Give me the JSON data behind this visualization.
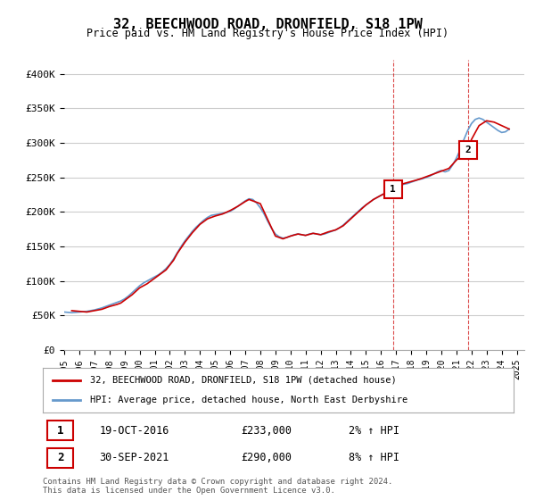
{
  "title": "32, BEECHWOOD ROAD, DRONFIELD, S18 1PW",
  "subtitle": "Price paid vs. HM Land Registry's House Price Index (HPI)",
  "ylabel_ticks": [
    "£0",
    "£50K",
    "£100K",
    "£150K",
    "£200K",
    "£250K",
    "£300K",
    "£350K",
    "£400K"
  ],
  "ytick_values": [
    0,
    50000,
    100000,
    150000,
    200000,
    250000,
    300000,
    350000,
    400000
  ],
  "ylim": [
    0,
    420000
  ],
  "xlim_start": 1995.0,
  "xlim_end": 2025.5,
  "legend_line1": "32, BEECHWOOD ROAD, DRONFIELD, S18 1PW (detached house)",
  "legend_line2": "HPI: Average price, detached house, North East Derbyshire",
  "sale1_date": "19-OCT-2016",
  "sale1_price": "£233,000",
  "sale1_hpi": "2% ↑ HPI",
  "sale1_x": 2016.8,
  "sale1_y": 233000,
  "sale2_date": "30-SEP-2021",
  "sale2_price": "£290,000",
  "sale2_hpi": "8% ↑ HPI",
  "sale2_x": 2021.75,
  "sale2_y": 290000,
  "line_color_red": "#cc0000",
  "line_color_blue": "#6699cc",
  "background_color": "#ffffff",
  "grid_color": "#cccccc",
  "footer_text": "Contains HM Land Registry data © Crown copyright and database right 2024.\nThis data is licensed under the Open Government Licence v3.0.",
  "hpi_data_x": [
    1995.0,
    1995.25,
    1995.5,
    1995.75,
    1996.0,
    1996.25,
    1996.5,
    1996.75,
    1997.0,
    1997.25,
    1997.5,
    1997.75,
    1998.0,
    1998.25,
    1998.5,
    1998.75,
    1999.0,
    1999.25,
    1999.5,
    1999.75,
    2000.0,
    2000.25,
    2000.5,
    2000.75,
    2001.0,
    2001.25,
    2001.5,
    2001.75,
    2002.0,
    2002.25,
    2002.5,
    2002.75,
    2003.0,
    2003.25,
    2003.5,
    2003.75,
    2004.0,
    2004.25,
    2004.5,
    2004.75,
    2005.0,
    2005.25,
    2005.5,
    2005.75,
    2006.0,
    2006.25,
    2006.5,
    2006.75,
    2007.0,
    2007.25,
    2007.5,
    2007.75,
    2008.0,
    2008.25,
    2008.5,
    2008.75,
    2009.0,
    2009.25,
    2009.5,
    2009.75,
    2010.0,
    2010.25,
    2010.5,
    2010.75,
    2011.0,
    2011.25,
    2011.5,
    2011.75,
    2012.0,
    2012.25,
    2012.5,
    2012.75,
    2013.0,
    2013.25,
    2013.5,
    2013.75,
    2014.0,
    2014.25,
    2014.5,
    2014.75,
    2015.0,
    2015.25,
    2015.5,
    2015.75,
    2016.0,
    2016.25,
    2016.5,
    2016.75,
    2017.0,
    2017.25,
    2017.5,
    2017.75,
    2018.0,
    2018.25,
    2018.5,
    2018.75,
    2019.0,
    2019.25,
    2019.5,
    2019.75,
    2020.0,
    2020.25,
    2020.5,
    2020.75,
    2021.0,
    2021.25,
    2021.5,
    2021.75,
    2022.0,
    2022.25,
    2022.5,
    2022.75,
    2023.0,
    2023.25,
    2023.5,
    2023.75,
    2024.0,
    2024.25,
    2024.5
  ],
  "hpi_data_y": [
    55000,
    54500,
    54000,
    54500,
    55000,
    55500,
    56000,
    57000,
    58000,
    59500,
    61000,
    63000,
    65000,
    67000,
    69000,
    71000,
    74000,
    78000,
    83000,
    88000,
    93000,
    97000,
    100000,
    103000,
    106000,
    109000,
    113000,
    118000,
    124000,
    132000,
    141000,
    150000,
    158000,
    165000,
    172000,
    178000,
    183000,
    188000,
    192000,
    195000,
    196000,
    197000,
    198000,
    199000,
    201000,
    204000,
    208000,
    212000,
    216000,
    219000,
    218000,
    213000,
    206000,
    197000,
    186000,
    176000,
    168000,
    164000,
    162000,
    163000,
    165000,
    167000,
    168000,
    167000,
    166000,
    168000,
    169000,
    168000,
    167000,
    168000,
    170000,
    172000,
    174000,
    177000,
    181000,
    186000,
    191000,
    196000,
    201000,
    206000,
    210000,
    214000,
    218000,
    221000,
    224000,
    227000,
    230000,
    232000,
    235000,
    238000,
    240000,
    241000,
    243000,
    245000,
    247000,
    248000,
    250000,
    252000,
    255000,
    258000,
    260000,
    258000,
    260000,
    268000,
    278000,
    290000,
    305000,
    318000,
    328000,
    334000,
    336000,
    334000,
    330000,
    326000,
    322000,
    318000,
    315000,
    316000,
    320000
  ],
  "price_data_x": [
    1995.5,
    1996.0,
    1996.5,
    1997.0,
    1997.5,
    1998.0,
    1998.5,
    1998.75,
    1999.0,
    1999.5,
    2000.0,
    2000.5,
    2001.0,
    2001.25,
    2001.75,
    2002.25,
    2002.5,
    2003.0,
    2003.5,
    2004.0,
    2004.5,
    2005.0,
    2005.5,
    2006.0,
    2006.5,
    2007.0,
    2007.25,
    2008.0,
    2009.0,
    2009.5,
    2010.0,
    2010.5,
    2011.0,
    2011.5,
    2012.0,
    2012.5,
    2013.0,
    2013.5,
    2014.0,
    2014.5,
    2015.0,
    2015.5,
    2016.0,
    2016.8,
    2017.0,
    2017.5,
    2018.0,
    2018.5,
    2019.0,
    2019.5,
    2020.0,
    2020.5,
    2021.0,
    2021.75,
    2022.0,
    2022.5,
    2023.0,
    2023.5,
    2024.0,
    2024.5
  ],
  "price_data_y": [
    57000,
    56000,
    55000,
    57000,
    59000,
    63000,
    66000,
    68000,
    72000,
    80000,
    90000,
    96000,
    104000,
    108000,
    116000,
    130000,
    140000,
    156000,
    170000,
    182000,
    190000,
    194000,
    197000,
    202000,
    208000,
    215000,
    218000,
    212000,
    165000,
    161000,
    165000,
    168000,
    166000,
    169000,
    167000,
    171000,
    174000,
    180000,
    190000,
    200000,
    210000,
    218000,
    224000,
    233000,
    237000,
    241000,
    244000,
    247000,
    251000,
    255000,
    259000,
    263000,
    275000,
    290000,
    305000,
    325000,
    332000,
    330000,
    325000,
    320000
  ]
}
